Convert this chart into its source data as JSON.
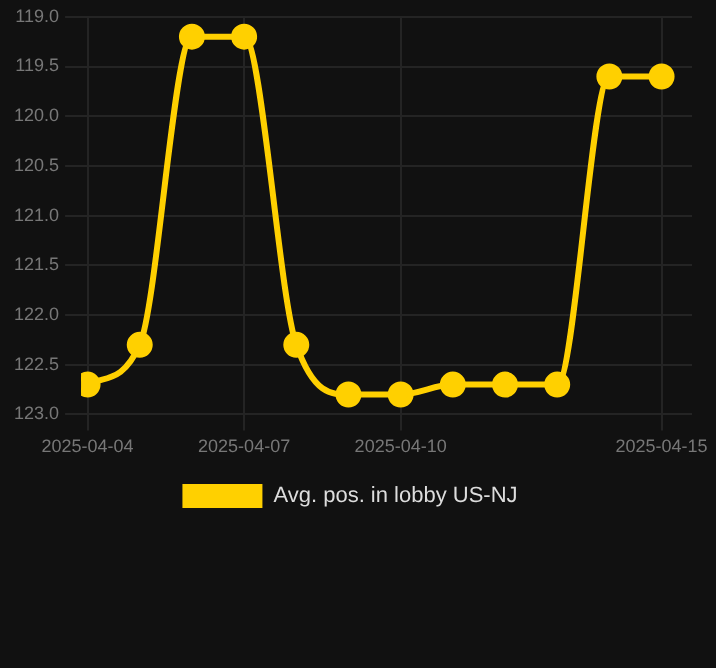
{
  "chart_data": {
    "type": "line",
    "x": [
      "2025-04-04",
      "2025-04-05",
      "2025-04-06",
      "2025-04-07",
      "2025-04-08",
      "2025-04-09",
      "2025-04-10",
      "2025-04-11",
      "2025-04-12",
      "2025-04-13",
      "2025-04-14",
      "2025-04-15"
    ],
    "series": [
      {
        "name": "Avg. pos. in lobby US-NJ",
        "color": "#ffd000",
        "values": [
          122.7,
          122.3,
          119.2,
          119.2,
          122.3,
          122.8,
          122.8,
          122.7,
          122.7,
          122.7,
          119.6,
          119.6
        ]
      }
    ],
    "xlim": [
      "2025-04-03T21:00",
      "2025-04-15T14:00"
    ],
    "xticks": [
      "2025-04-04",
      "2025-04-07",
      "2025-04-10",
      "2025-04-15"
    ],
    "ylim": [
      123.0,
      119.0
    ],
    "yticks": [
      {
        "value": 119,
        "label": "119.0"
      },
      119.5,
      {
        "value": 120,
        "label": "120.0"
      },
      120.5,
      {
        "value": 121,
        "label": "121.0"
      },
      121.5,
      {
        "value": 122,
        "label": "122.0"
      },
      122.5,
      {
        "value": 123,
        "label": "123.0"
      }
    ],
    "grid": true,
    "legend": "bottom",
    "marker": "circle",
    "line_style": "solid"
  }
}
